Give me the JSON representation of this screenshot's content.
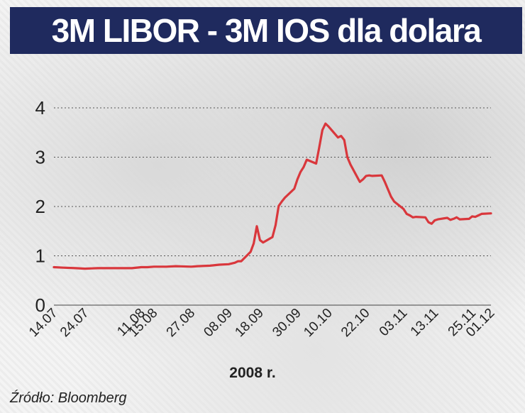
{
  "chart_data": {
    "type": "line",
    "title": "3M LIBOR - 3M IOS dla dolara",
    "xlabel": "2008 r.",
    "ylabel": "",
    "ylim": [
      0,
      4
    ],
    "yticks": [
      0,
      1,
      2,
      3,
      4
    ],
    "grid": true,
    "legend": "none",
    "x_tick_labels": [
      "14.07",
      "24.07",
      "11.08",
      "15.08",
      "27.08",
      "08.09",
      "18.09",
      "30.09",
      "10.10",
      "22.10",
      "03.11",
      "13.11",
      "25.11",
      "01.12"
    ],
    "series": [
      {
        "color": "#d9373c",
        "points": [
          [
            "14.07",
            0.77
          ],
          [
            "17.07",
            0.76
          ],
          [
            "21.07",
            0.75
          ],
          [
            "24.07",
            0.74
          ],
          [
            "28.07",
            0.75
          ],
          [
            "31.07",
            0.75
          ],
          [
            "04.08",
            0.75
          ],
          [
            "08.08",
            0.75
          ],
          [
            "11.08",
            0.77
          ],
          [
            "13.08",
            0.77
          ],
          [
            "15.08",
            0.78
          ],
          [
            "19.08",
            0.78
          ],
          [
            "22.08",
            0.79
          ],
          [
            "27.08",
            0.78
          ],
          [
            "29.08",
            0.79
          ],
          [
            "02.09",
            0.8
          ],
          [
            "05.09",
            0.82
          ],
          [
            "08.09",
            0.83
          ],
          [
            "10.09",
            0.86
          ],
          [
            "11.09",
            0.89
          ],
          [
            "12.09",
            0.89
          ],
          [
            "15.09",
            1.08
          ],
          [
            "16.09",
            1.25
          ],
          [
            "17.09",
            1.6
          ],
          [
            "18.09",
            1.32
          ],
          [
            "19.09",
            1.27
          ],
          [
            "22.09",
            1.38
          ],
          [
            "23.09",
            1.62
          ],
          [
            "24.09",
            2.01
          ],
          [
            "25.09",
            2.1
          ],
          [
            "26.09",
            2.18
          ],
          [
            "29.09",
            2.36
          ],
          [
            "30.09",
            2.55
          ],
          [
            "01.10",
            2.7
          ],
          [
            "02.10",
            2.8
          ],
          [
            "03.10",
            2.95
          ],
          [
            "06.10",
            2.87
          ],
          [
            "07.10",
            3.2
          ],
          [
            "08.10",
            3.55
          ],
          [
            "09.10",
            3.68
          ],
          [
            "10.10",
            3.62
          ],
          [
            "13.10",
            3.4
          ],
          [
            "14.10",
            3.43
          ],
          [
            "15.10",
            3.35
          ],
          [
            "16.10",
            3.0
          ],
          [
            "17.10",
            2.85
          ],
          [
            "20.10",
            2.5
          ],
          [
            "21.10",
            2.55
          ],
          [
            "22.10",
            2.62
          ],
          [
            "23.10",
            2.63
          ],
          [
            "24.10",
            2.62
          ],
          [
            "27.10",
            2.63
          ],
          [
            "28.10",
            2.5
          ],
          [
            "29.10",
            2.35
          ],
          [
            "30.10",
            2.2
          ],
          [
            "31.10",
            2.1
          ],
          [
            "03.11",
            1.95
          ],
          [
            "04.11",
            1.85
          ],
          [
            "05.11",
            1.82
          ],
          [
            "06.11",
            1.78
          ],
          [
            "07.11",
            1.79
          ],
          [
            "10.11",
            1.78
          ],
          [
            "11.11",
            1.68
          ],
          [
            "12.11",
            1.65
          ],
          [
            "13.11",
            1.72
          ],
          [
            "14.11",
            1.74
          ],
          [
            "17.11",
            1.77
          ],
          [
            "18.11",
            1.73
          ],
          [
            "19.11",
            1.75
          ],
          [
            "20.11",
            1.78
          ],
          [
            "21.11",
            1.74
          ],
          [
            "24.11",
            1.75
          ],
          [
            "25.11",
            1.8
          ],
          [
            "26.11",
            1.79
          ],
          [
            "27.11",
            1.82
          ],
          [
            "28.11",
            1.85
          ],
          [
            "01.12",
            1.86
          ]
        ]
      }
    ]
  },
  "source": "Źródło: Bloomberg"
}
